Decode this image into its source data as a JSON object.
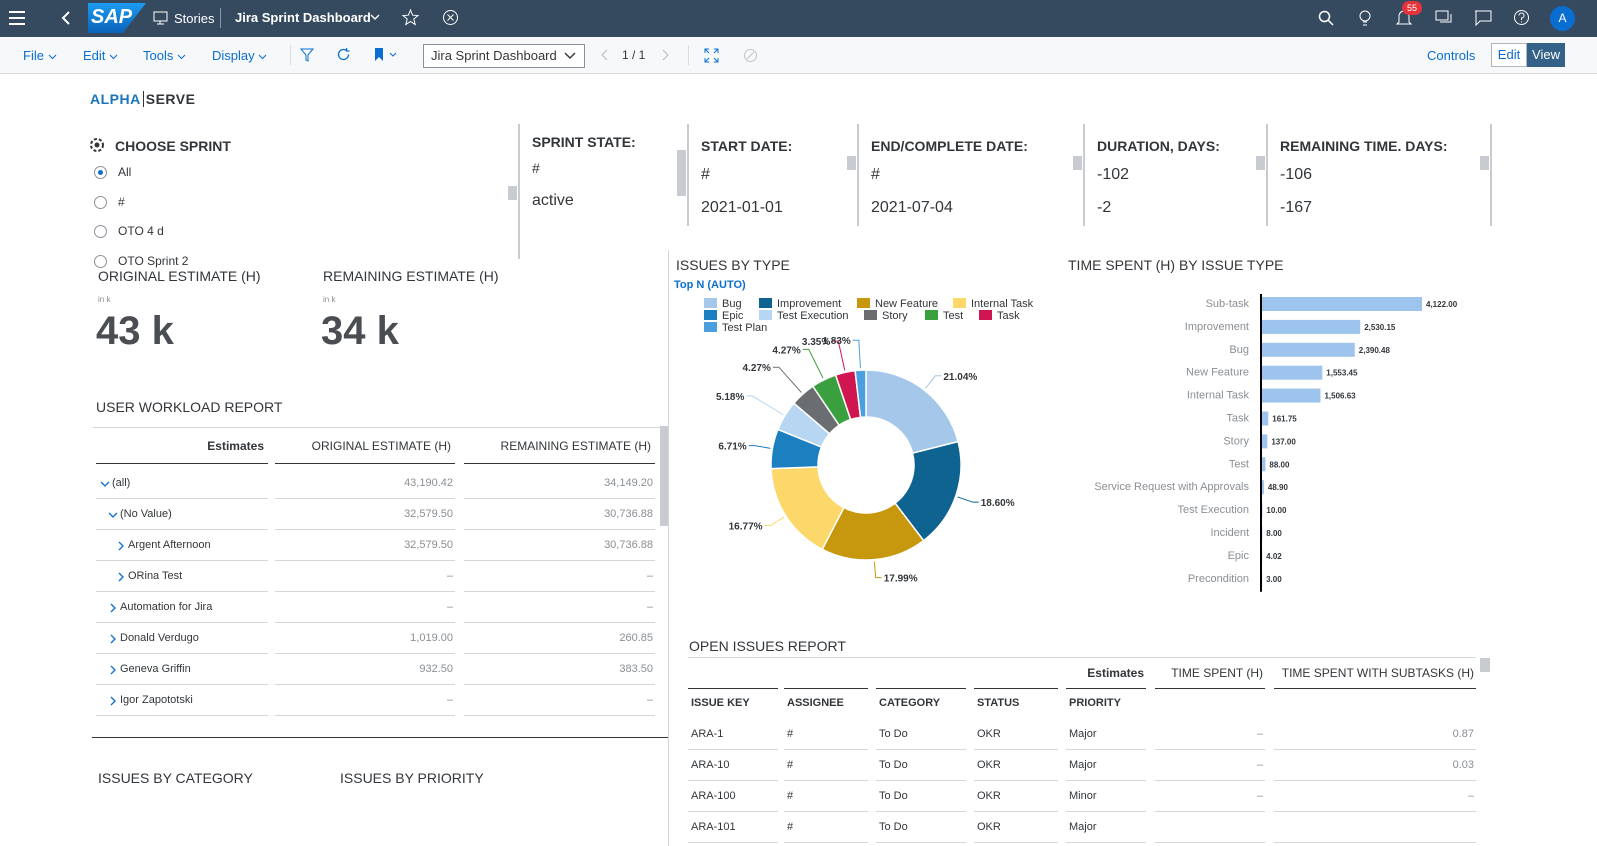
{
  "shell": {
    "logo": "SAP",
    "app": "Stories",
    "story": "Jira Sprint Dashboard",
    "notifications": "55",
    "avatar": "A"
  },
  "toolbar": {
    "menus": [
      "File",
      "Edit",
      "Tools",
      "Display"
    ],
    "page_select": "Jira Sprint Dashboard",
    "pager": "1 / 1",
    "controls": "Controls",
    "edit": "Edit",
    "view": "View"
  },
  "brand": {
    "left": "ALPHA",
    "right": "SERVE"
  },
  "sprint_filter": {
    "title": "CHOOSE SPRINT",
    "options": [
      "All",
      "#",
      "OTO 4 d",
      "OTO Sprint 2"
    ],
    "selected": 0
  },
  "kpis": [
    {
      "label": "SPRINT STATE:",
      "values": [
        "#",
        "active"
      ]
    },
    {
      "label": "START DATE:",
      "values": [
        "#",
        "2021-01-01"
      ]
    },
    {
      "label": "END/COMPLETE DATE:",
      "values": [
        "#",
        "2021-07-04"
      ]
    },
    {
      "label": "DURATION, DAYS:",
      "values": [
        "-102",
        "-2"
      ]
    },
    {
      "label": "REMAINING TIME. DAYS:",
      "values": [
        "-106",
        "-167"
      ]
    }
  ],
  "estimates": [
    {
      "label": "ORIGINAL ESTIMATE (H)",
      "unit": "in k",
      "value": "43 k"
    },
    {
      "label": "REMAINING ESTIMATE (H)",
      "unit": "in k",
      "value": "34 k"
    }
  ],
  "workload": {
    "title": "USER WORKLOAD REPORT",
    "headers": [
      "Estimates",
      "ORIGINAL ESTIMATE (H)",
      "REMAINING ESTIMATE (H)"
    ],
    "rows": [
      {
        "label": "(all)",
        "level": 0,
        "expanded": true,
        "cells": [
          "43,190.42",
          "34,149.20"
        ]
      },
      {
        "label": "(No Value)",
        "level": 1,
        "expanded": true,
        "cells": [
          "32,579.50",
          "30,736.88"
        ]
      },
      {
        "label": "Argent Afternoon",
        "level": 2,
        "expanded": false,
        "cells": [
          "32,579.50",
          "30,736.88"
        ]
      },
      {
        "label": "ORina Test",
        "level": 2,
        "expanded": false,
        "cells": [
          "–",
          "–"
        ]
      },
      {
        "label": "Automation for Jira",
        "level": 1,
        "expanded": false,
        "cells": [
          "–",
          "–"
        ]
      },
      {
        "label": "Donald Verdugo",
        "level": 1,
        "expanded": false,
        "cells": [
          "1,019.00",
          "260.85"
        ]
      },
      {
        "label": "Geneva Griffin",
        "level": 1,
        "expanded": false,
        "cells": [
          "932.50",
          "383.50"
        ]
      },
      {
        "label": "Igor Zapototski",
        "level": 1,
        "expanded": false,
        "cells": [
          "–",
          "–"
        ]
      }
    ]
  },
  "issues_by_type": {
    "type": "pie",
    "donut": true,
    "title": "ISSUES BY TYPE",
    "subtitle": "Top N (AUTO)",
    "categories": [
      "Bug",
      "Improvement",
      "New Feature",
      "Internal Task",
      "Epic",
      "Test Execution",
      "Story",
      "Test",
      "Task",
      "Test Plan"
    ],
    "values": [
      21.04,
      18.6,
      17.99,
      16.77,
      6.71,
      5.18,
      4.27,
      4.27,
      3.35,
      1.83
    ],
    "value_labels": [
      "21.04%",
      "18.60%",
      "17.99%",
      "16.77%",
      "6.71%",
      "5.18%",
      "4.27%",
      "4.27%",
      "3.35%",
      "1.83%"
    ],
    "colors": [
      "#a5c8ea",
      "#0f6390",
      "#c7980d",
      "#fcd86b",
      "#1b7fc0",
      "#b7d6f2",
      "#6b6e71",
      "#3a9f3e",
      "#d01650",
      "#4b9fdf"
    ]
  },
  "time_spent_by_type": {
    "type": "bar",
    "orientation": "horizontal",
    "title": "TIME SPENT (H) BY ISSUE TYPE",
    "categories": [
      "Sub-task",
      "Improvement",
      "Bug",
      "New Feature",
      "Internal Task",
      "Task",
      "Story",
      "Test",
      "Service Request with Approvals",
      "Test Execution",
      "Incident",
      "Epic",
      "Precondition"
    ],
    "values": [
      4122.0,
      2530.15,
      2390.48,
      1553.45,
      1506.63,
      161.75,
      137.0,
      88.0,
      48.9,
      10.0,
      8.0,
      4.02,
      3.0
    ],
    "value_labels": [
      "4,122.00",
      "2,530.15",
      "2,390.48",
      "1,553.45",
      "1,506.63",
      "161.75",
      "137.00",
      "88.00",
      "48.90",
      "10.00",
      "8.00",
      "4.02",
      "3.00"
    ],
    "color": "#9dc4ec"
  },
  "open_issues": {
    "title": "OPEN ISSUES REPORT",
    "group_headers": [
      "Estimates",
      "TIME SPENT (H)",
      "TIME SPENT WITH SUBTASKS (H)"
    ],
    "columns": [
      "ISSUE KEY",
      "ASSIGNEE",
      "CATEGORY",
      "STATUS",
      "PRIORITY"
    ],
    "rows": [
      [
        "ARA-1",
        "#",
        "To Do",
        "OKR",
        "Major",
        "–",
        "0.87"
      ],
      [
        "ARA-10",
        "#",
        "To Do",
        "OKR",
        "Major",
        "–",
        "0.03"
      ],
      [
        "ARA-100",
        "#",
        "To Do",
        "OKR",
        "Minor",
        "–",
        "–"
      ],
      [
        "ARA-101",
        "#",
        "To Do",
        "OKR",
        "Major"
      ]
    ]
  },
  "bottom": {
    "category_title": "ISSUES BY CATEGORY",
    "priority_title": "ISSUES BY PRIORITY"
  }
}
